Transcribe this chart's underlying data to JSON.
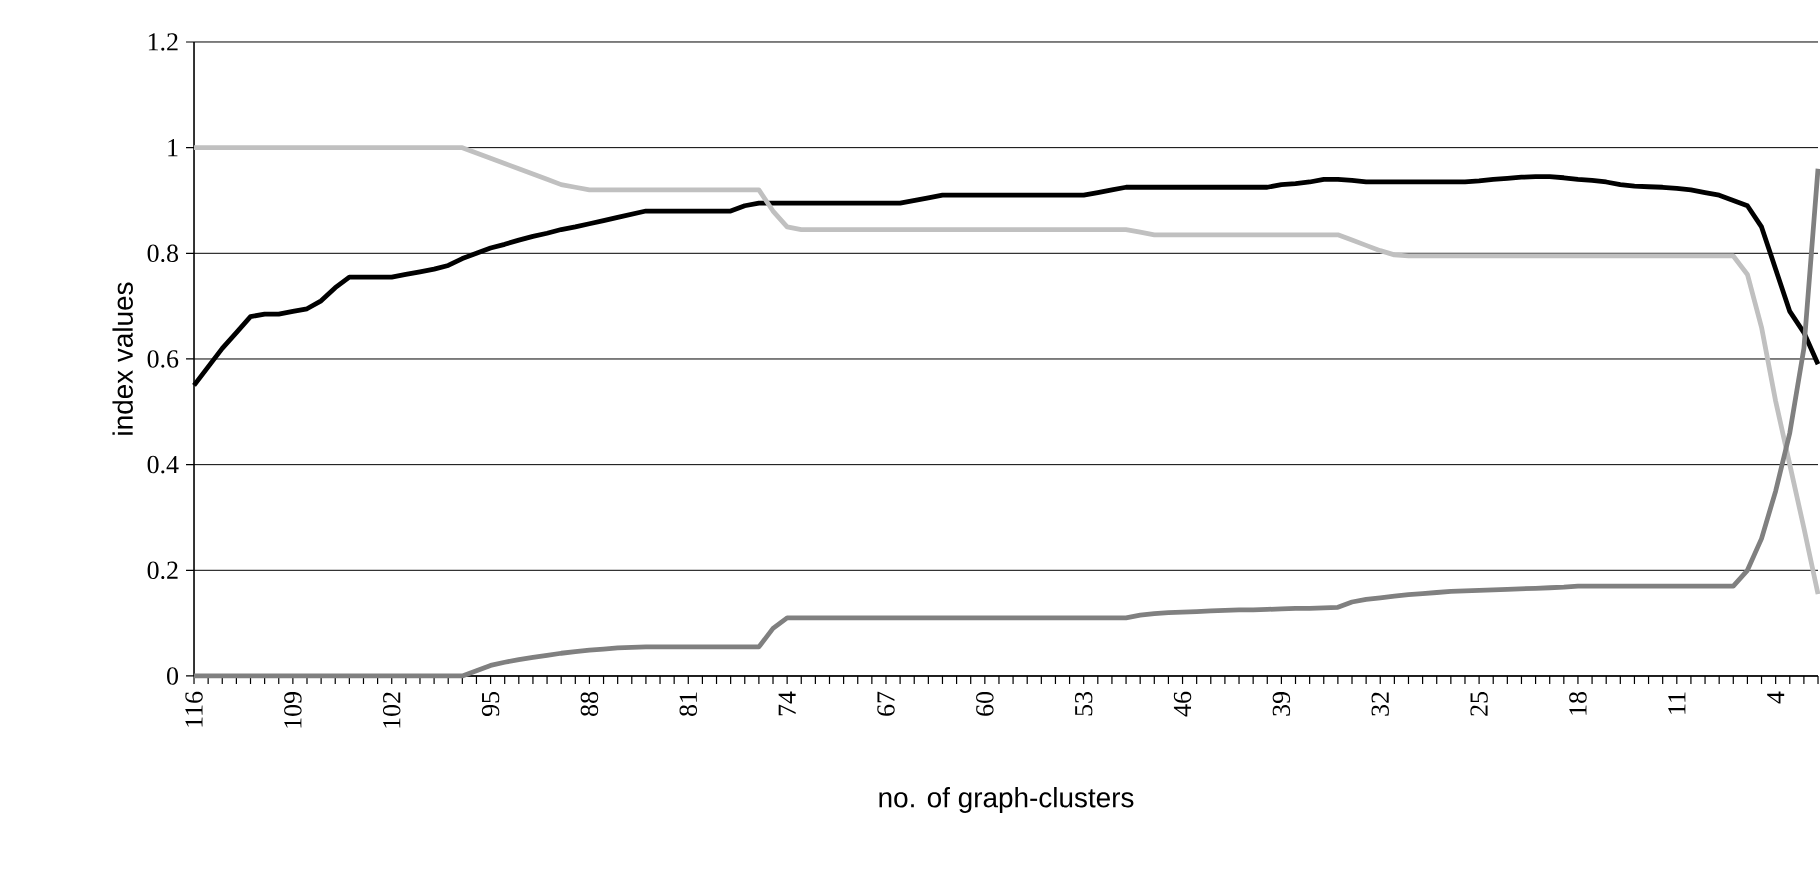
{
  "chart_data": {
    "type": "line",
    "xlabel": "no. of graph-clusters",
    "ylabel": "index values",
    "categories": [
      "116",
      null,
      null,
      null,
      null,
      null,
      null,
      "109",
      null,
      null,
      null,
      null,
      null,
      null,
      "102",
      null,
      null,
      null,
      null,
      null,
      null,
      "95",
      null,
      null,
      null,
      null,
      null,
      null,
      "88",
      null,
      null,
      null,
      null,
      null,
      null,
      "81",
      null,
      null,
      null,
      null,
      null,
      null,
      "74",
      null,
      null,
      null,
      null,
      null,
      null,
      "67",
      null,
      null,
      null,
      null,
      null,
      null,
      "60",
      null,
      null,
      null,
      null,
      null,
      null,
      "53",
      null,
      null,
      null,
      null,
      null,
      null,
      "46",
      null,
      null,
      null,
      null,
      null,
      null,
      "39",
      null,
      null,
      null,
      null,
      null,
      null,
      "32",
      null,
      null,
      null,
      null,
      null,
      null,
      "25",
      null,
      null,
      null,
      null,
      null,
      null,
      "18",
      null,
      null,
      null,
      null,
      null,
      null,
      "11",
      null,
      null,
      null,
      null,
      null,
      null,
      "4",
      null,
      null,
      null
    ],
    "series": [
      {
        "color": "#000000",
        "values": [
          0.55,
          0.585,
          0.62,
          0.65,
          0.68,
          0.685,
          0.685,
          0.69,
          0.695,
          0.71,
          0.735,
          0.755,
          0.755,
          0.755,
          0.755,
          0.76,
          0.765,
          0.77,
          0.777,
          0.79,
          0.8,
          0.81,
          0.817,
          0.825,
          0.832,
          0.838,
          0.845,
          0.85,
          0.856,
          0.862,
          0.868,
          0.874,
          0.88,
          0.88,
          0.88,
          0.88,
          0.88,
          0.88,
          0.88,
          0.89,
          0.895,
          0.895,
          0.895,
          0.895,
          0.895,
          0.895,
          0.895,
          0.895,
          0.895,
          0.895,
          0.895,
          0.9,
          0.905,
          0.91,
          0.91,
          0.91,
          0.91,
          0.91,
          0.91,
          0.91,
          0.91,
          0.91,
          0.91,
          0.91,
          0.915,
          0.92,
          0.925,
          0.925,
          0.925,
          0.925,
          0.925,
          0.925,
          0.925,
          0.925,
          0.925,
          0.925,
          0.925,
          0.93,
          0.932,
          0.935,
          0.94,
          0.94,
          0.938,
          0.935,
          0.935,
          0.935,
          0.935,
          0.935,
          0.935,
          0.935,
          0.935,
          0.937,
          0.94,
          0.942,
          0.944,
          0.945,
          0.945,
          0.943,
          0.94,
          0.938,
          0.935,
          0.93,
          0.927,
          0.926,
          0.925,
          0.923,
          0.92,
          0.915,
          0.91,
          0.9,
          0.89,
          0.85,
          0.77,
          0.69,
          0.65,
          0.59
        ]
      },
      {
        "color": "#c0c0c0",
        "values": [
          1,
          1,
          1,
          1,
          1,
          1,
          1,
          1,
          1,
          1,
          1,
          1,
          1,
          1,
          1,
          1,
          1,
          1,
          1,
          1,
          0.99,
          0.98,
          0.97,
          0.96,
          0.95,
          0.94,
          0.93,
          0.925,
          0.92,
          0.92,
          0.92,
          0.92,
          0.92,
          0.92,
          0.92,
          0.92,
          0.92,
          0.92,
          0.92,
          0.92,
          0.92,
          0.88,
          0.85,
          0.845,
          0.845,
          0.845,
          0.845,
          0.845,
          0.845,
          0.845,
          0.845,
          0.845,
          0.845,
          0.845,
          0.845,
          0.845,
          0.845,
          0.845,
          0.845,
          0.845,
          0.845,
          0.845,
          0.845,
          0.845,
          0.845,
          0.845,
          0.845,
          0.84,
          0.835,
          0.835,
          0.835,
          0.835,
          0.835,
          0.835,
          0.835,
          0.835,
          0.835,
          0.835,
          0.835,
          0.835,
          0.835,
          0.835,
          0.825,
          0.815,
          0.805,
          0.797,
          0.795,
          0.795,
          0.795,
          0.795,
          0.795,
          0.795,
          0.795,
          0.795,
          0.795,
          0.795,
          0.795,
          0.795,
          0.795,
          0.795,
          0.795,
          0.795,
          0.795,
          0.795,
          0.795,
          0.795,
          0.795,
          0.795,
          0.795,
          0.795,
          0.76,
          0.66,
          0.52,
          0.4,
          0.28,
          0.155
        ]
      },
      {
        "color": "#808080",
        "values": [
          0,
          0,
          0,
          0,
          0,
          0,
          0,
          0,
          0,
          0,
          0,
          0,
          0,
          0,
          0,
          0,
          0,
          0,
          0,
          0,
          0.01,
          0.02,
          0.026,
          0.031,
          0.035,
          0.039,
          0.043,
          0.046,
          0.049,
          0.051,
          0.053,
          0.054,
          0.055,
          0.055,
          0.055,
          0.055,
          0.055,
          0.055,
          0.055,
          0.055,
          0.055,
          0.09,
          0.11,
          0.11,
          0.11,
          0.11,
          0.11,
          0.11,
          0.11,
          0.11,
          0.11,
          0.11,
          0.11,
          0.11,
          0.11,
          0.11,
          0.11,
          0.11,
          0.11,
          0.11,
          0.11,
          0.11,
          0.11,
          0.11,
          0.11,
          0.11,
          0.11,
          0.115,
          0.118,
          0.12,
          0.121,
          0.122,
          0.123,
          0.124,
          0.125,
          0.125,
          0.126,
          0.127,
          0.128,
          0.128,
          0.129,
          0.13,
          0.14,
          0.145,
          0.148,
          0.151,
          0.154,
          0.156,
          0.158,
          0.16,
          0.161,
          0.162,
          0.163,
          0.164,
          0.165,
          0.166,
          0.167,
          0.168,
          0.17,
          0.17,
          0.17,
          0.17,
          0.17,
          0.17,
          0.17,
          0.17,
          0.17,
          0.17,
          0.17,
          0.17,
          0.2,
          0.26,
          0.35,
          0.46,
          0.62,
          0.96
        ]
      }
    ],
    "ylim": [
      0,
      1.2
    ],
    "yticks": [
      0,
      0.2,
      0.4,
      0.6,
      0.8,
      1,
      1.2
    ],
    "grid": "y",
    "marker": "none",
    "line_style": "solid"
  }
}
